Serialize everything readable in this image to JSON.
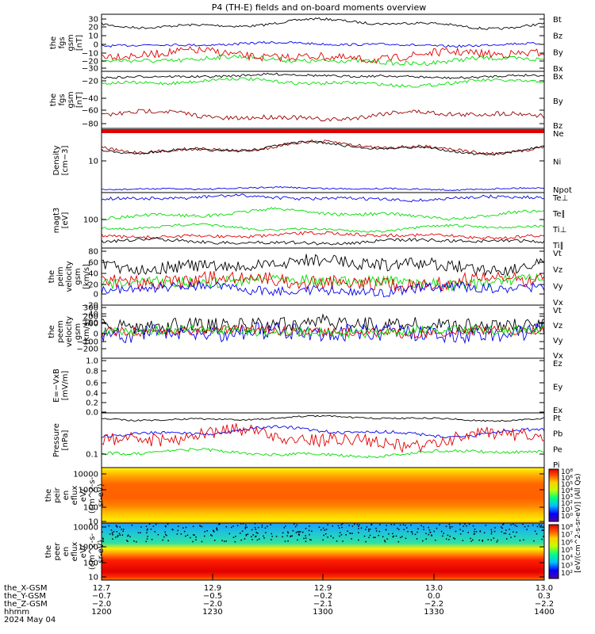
{
  "title": "P4 (TH-E) fields and on-board moments overview",
  "colors": {
    "black": "#000000",
    "red": "#e00000",
    "green": "#00dd00",
    "blue": "#0000ee",
    "darkred": "#9a0000",
    "lime": "#22ee22"
  },
  "panels": [
    {
      "id": "fgs-gsm",
      "ylabel": [
        "the",
        "fgs",
        "gsm",
        "[nT]"
      ],
      "yticks": [
        "30",
        "20",
        "10",
        "0",
        "−10",
        "−20",
        "−30"
      ],
      "legend": [
        {
          "text": "Bt",
          "color": "black"
        },
        {
          "text": "Bz",
          "color": "red"
        },
        {
          "text": "By",
          "color": "green"
        },
        {
          "text": "Bx",
          "color": "blue"
        }
      ]
    },
    {
      "id": "fgs-gsm-2",
      "ylabel": [
        "the",
        "fgs",
        "gsm",
        "[nT]"
      ],
      "yticks": [
        "−20",
        "−40",
        "−60",
        "−80"
      ],
      "legend": [
        {
          "text": "Bx",
          "color": "black"
        },
        {
          "text": "By",
          "color": "green"
        },
        {
          "text": "Bz",
          "color": "darkred"
        }
      ]
    },
    {
      "id": "density",
      "ylabel": [
        "Density",
        "[cm−3]"
      ],
      "yticks": [
        "10"
      ],
      "legend": [
        {
          "text": "Ne",
          "color": "red"
        },
        {
          "text": "Ni",
          "color": "black"
        },
        {
          "text": "Npot",
          "color": "blue"
        }
      ]
    },
    {
      "id": "temperature",
      "ylabel": [
        "magt3",
        "[eV]"
      ],
      "yticks": [
        "100"
      ],
      "legend": [
        {
          "text": "Te⊥",
          "color": "red"
        },
        {
          "text": "Te∥",
          "color": "black"
        },
        {
          "text": "Ti⊥",
          "color": "green"
        },
        {
          "text": "Ti∥",
          "color": "green"
        }
      ]
    },
    {
      "id": "peim-velocity",
      "ylabel": [
        "the",
        "peim",
        "velocity",
        "gsm",
        "[km/s]"
      ],
      "yticks": [
        "80",
        "60",
        "40",
        "20",
        "0",
        "−20",
        "−40",
        "−60"
      ],
      "legend": [
        {
          "text": "Vt",
          "color": "black"
        },
        {
          "text": "Vz",
          "color": "red"
        },
        {
          "text": "Vy",
          "color": "green"
        },
        {
          "text": "Vx",
          "color": "blue"
        }
      ]
    },
    {
      "id": "peem-velocity",
      "ylabel": [
        "the",
        "peem",
        "velocity",
        "gsm",
        "[km/s]"
      ],
      "yticks": [
        "300",
        "200",
        "100",
        "0",
        "−100",
        "−200"
      ],
      "legend": [
        {
          "text": "Vt",
          "color": "black"
        },
        {
          "text": "Vz",
          "color": "red"
        },
        {
          "text": "Vy",
          "color": "green"
        },
        {
          "text": "Vx",
          "color": "blue"
        }
      ]
    },
    {
      "id": "efield",
      "ylabel": [
        "E=−VxB",
        "[mV/m]"
      ],
      "yticks": [
        "1.0",
        "0.8",
        "0.6",
        "0.4",
        "0.2",
        "0.0"
      ],
      "legend": [
        {
          "text": "Ez",
          "color": "red"
        },
        {
          "text": "Ey",
          "color": "green"
        },
        {
          "text": "Ex",
          "color": "blue"
        }
      ]
    },
    {
      "id": "pressure",
      "ylabel": [
        "Pressure",
        "[nPa]"
      ],
      "yticks": [
        "0.1"
      ],
      "legend": [
        {
          "text": "Pt",
          "color": "black"
        },
        {
          "text": "Pb",
          "color": "red"
        },
        {
          "text": "Pe",
          "color": "green"
        },
        {
          "text": "Pi",
          "color": "blue"
        }
      ]
    },
    {
      "id": "peir-spec",
      "ylabel": [
        "the",
        "peir",
        "en",
        "eflux",
        "eV/",
        "(cm^2-s-",
        "sr-eV)"
      ],
      "yticks": [
        "10000",
        "1000",
        "100",
        "10"
      ],
      "cbar": [
        "10⁸",
        "10⁶",
        "10⁵",
        "10⁴",
        "10³",
        "10²",
        "10¹",
        "10⁰"
      ]
    },
    {
      "id": "peer-spec",
      "ylabel": [
        "the",
        "peer",
        "en",
        "eflux",
        "eV/",
        "(cm^2-s-",
        "sr-eV)"
      ],
      "yticks": [
        "10000",
        "1000",
        "100",
        "10"
      ],
      "cbar": [
        "10⁸",
        "10⁷",
        "10⁶",
        "10⁵",
        "10⁴",
        "10³",
        "10²"
      ]
    }
  ],
  "colorbar_label": "[eV/(cm^2-s-sr-eV)] (All Qs)",
  "xaxis": {
    "row_labels": [
      "the_X-GSM",
      "the_Y-GSM",
      "the_Z-GSM",
      "hhmm",
      "2024 May 04"
    ],
    "rows": [
      [
        "12.7",
        "12.9",
        "12.9",
        "13.0",
        "13.0"
      ],
      [
        "−0.7",
        "−0.5",
        "−0.2",
        "0.0",
        "0.3"
      ],
      [
        "−2.0",
        "−2.0",
        "−2.1",
        "−2.2",
        "−2.2"
      ],
      [
        "1200",
        "1230",
        "1300",
        "1330",
        "1400"
      ]
    ]
  },
  "chart_data": {
    "type": "line",
    "title": "P4 (TH-E) fields and on-board moments overview",
    "x": [
      "1200",
      "1230",
      "1300",
      "1330",
      "1400"
    ],
    "series": [
      {
        "name": "Bt",
        "panel": "fgs-gsm",
        "values": [
          27,
          30,
          25,
          30,
          26
        ]
      },
      {
        "name": "Bz",
        "panel": "fgs-gsm",
        "values": [
          -10,
          -12,
          -15,
          -8,
          -10
        ]
      },
      {
        "name": "By",
        "panel": "fgs-gsm",
        "values": [
          -22,
          -24,
          -20,
          -25,
          -20
        ]
      },
      {
        "name": "Bx",
        "panel": "fgs-gsm",
        "values": [
          0,
          1,
          -2,
          0,
          -1
        ]
      },
      {
        "name": "Bx",
        "panel": "fgs-gsm-2",
        "values": [
          -2,
          -2,
          -3,
          -4,
          -3
        ]
      },
      {
        "name": "By",
        "panel": "fgs-gsm-2",
        "values": [
          -20,
          -22,
          -18,
          -25,
          -20
        ]
      },
      {
        "name": "Bz",
        "panel": "fgs-gsm-2",
        "values": [
          -72,
          -70,
          -68,
          -72,
          -70
        ]
      },
      {
        "name": "Ne",
        "panel": "density",
        "values": [
          13,
          12,
          11,
          8,
          10
        ]
      },
      {
        "name": "Ni",
        "panel": "density",
        "values": [
          13,
          12,
          11,
          8,
          10
        ]
      },
      {
        "name": "Npot",
        "panel": "density",
        "values": [
          5,
          5,
          5,
          5,
          5
        ]
      },
      {
        "name": "Te⊥",
        "panel": "temperature",
        "values": [
          55,
          55,
          55,
          55,
          55
        ]
      },
      {
        "name": "Ti⊥",
        "panel": "temperature",
        "values": [
          110,
          105,
          120,
          95,
          100
        ]
      },
      {
        "name": "Pt",
        "panel": "pressure",
        "values": [
          0.3,
          0.3,
          0.3,
          0.28,
          0.3
        ]
      },
      {
        "name": "Pb",
        "panel": "pressure",
        "values": [
          0.22,
          0.17,
          0.12,
          0.26,
          0.22
        ]
      },
      {
        "name": "Pe",
        "panel": "pressure",
        "values": [
          0.12,
          0.12,
          0.13,
          0.1,
          0.11
        ]
      },
      {
        "name": "Pi",
        "panel": "pressure",
        "values": [
          0.25,
          0.23,
          0.22,
          0.2,
          0.22
        ]
      }
    ],
    "xlabel": "hhmm",
    "grid": false
  }
}
